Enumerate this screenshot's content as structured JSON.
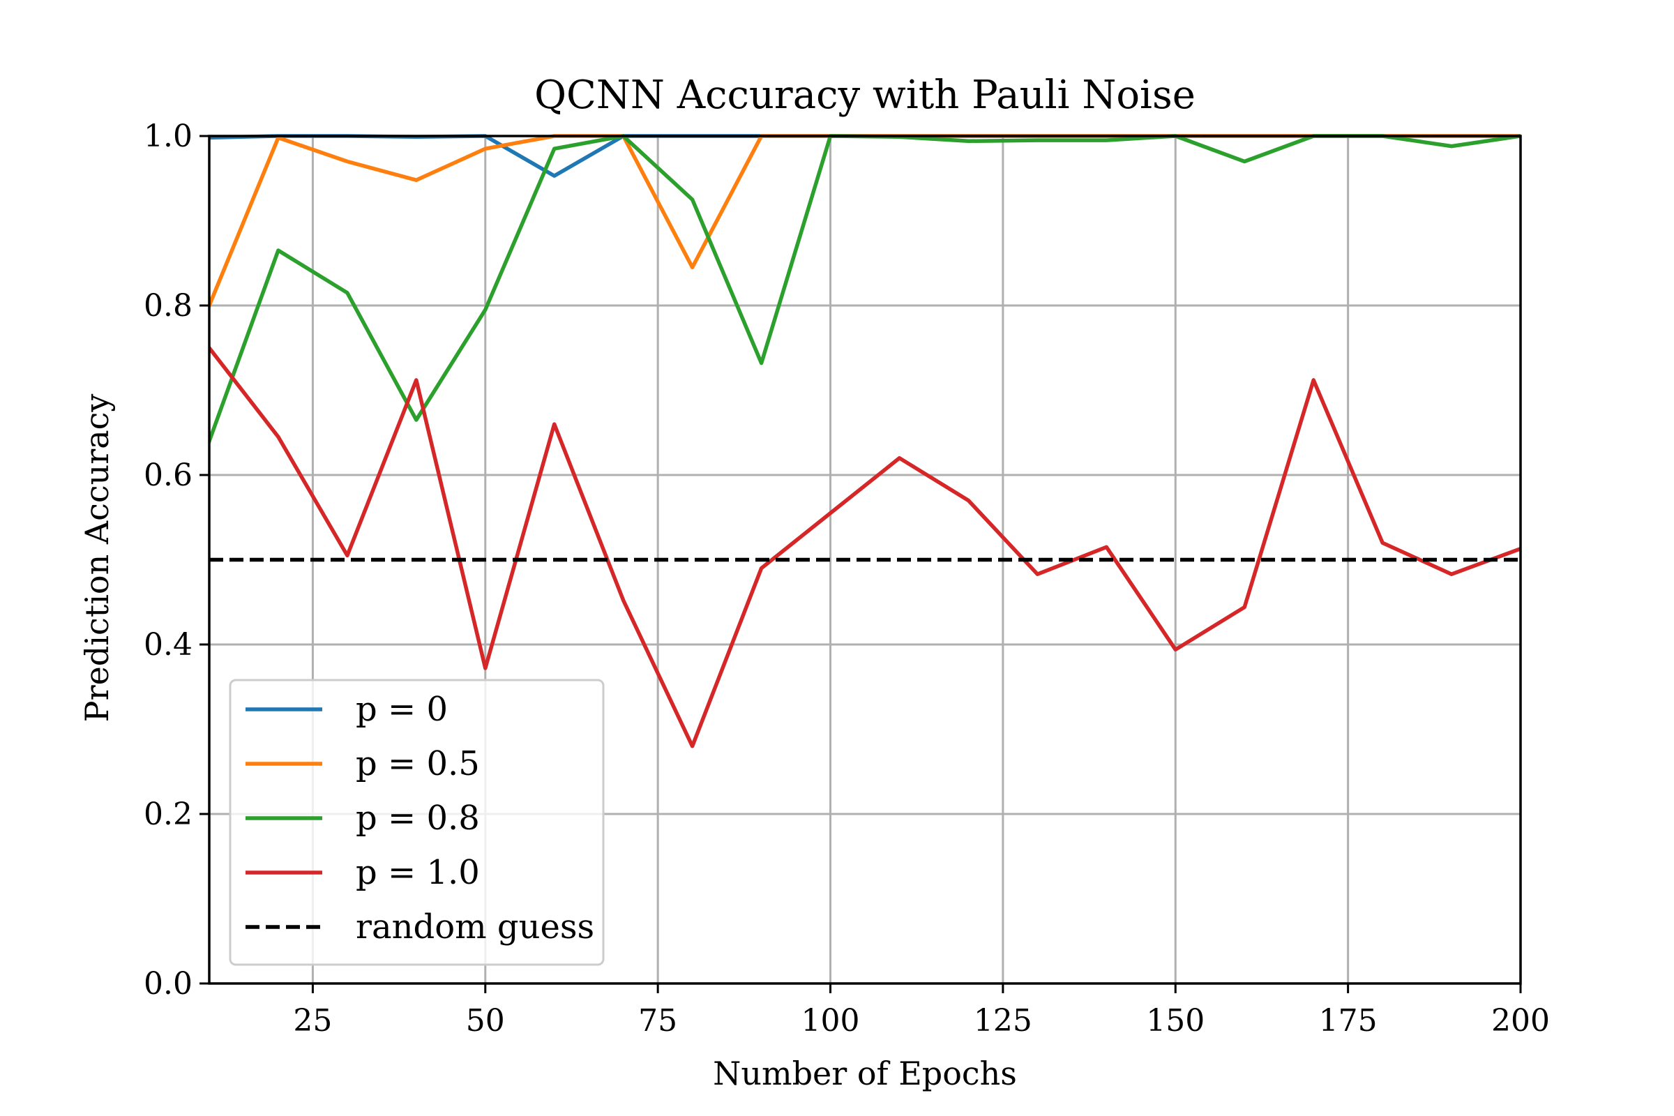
{
  "chart_data": {
    "type": "line",
    "title": "QCNN Accuracy with Pauli Noise",
    "xlabel": "Number of Epochs",
    "ylabel": "Prediction Accuracy",
    "xlim": [
      10,
      200
    ],
    "ylim": [
      0.0,
      1.0
    ],
    "xticks": [
      25,
      50,
      75,
      100,
      125,
      150,
      175,
      200
    ],
    "xtick_labels": [
      "25",
      "50",
      "75",
      "100",
      "125",
      "150",
      "175",
      "200"
    ],
    "yticks": [
      0.0,
      0.2,
      0.4,
      0.6,
      0.8,
      1.0
    ],
    "ytick_labels": [
      "0.0",
      "0.2",
      "0.4",
      "0.6",
      "0.8",
      "1.0"
    ],
    "grid": true,
    "legend_position": "lower-left",
    "x": [
      10,
      20,
      30,
      40,
      50,
      60,
      70,
      80,
      90,
      100,
      110,
      120,
      130,
      140,
      150,
      160,
      170,
      180,
      190,
      200
    ],
    "series": [
      {
        "name": "p = 0",
        "color": "#1f77b4",
        "values": [
          0.998,
          1.0,
          1.0,
          0.999,
          1.0,
          0.953,
          1.0,
          1.0,
          1.0,
          1.0,
          1.0,
          1.0,
          1.0,
          1.0,
          1.0,
          1.0,
          1.0,
          1.0,
          1.0,
          1.0
        ]
      },
      {
        "name": "p = 0.5",
        "color": "#ff7f0e",
        "values": [
          0.8,
          0.998,
          0.97,
          0.948,
          0.985,
          1.0,
          1.0,
          0.845,
          1.0,
          1.0,
          1.0,
          1.0,
          1.0,
          1.0,
          1.0,
          1.0,
          1.0,
          1.0,
          1.0,
          1.0
        ]
      },
      {
        "name": "p = 0.8",
        "color": "#2ca02c",
        "values": [
          0.64,
          0.865,
          0.815,
          0.665,
          0.795,
          0.985,
          1.0,
          0.925,
          0.732,
          1.0,
          0.999,
          0.994,
          0.995,
          0.995,
          1.0,
          0.97,
          1.0,
          1.0,
          0.988,
          1.0
        ]
      },
      {
        "name": "p = 1.0",
        "color": "#d62728",
        "values": [
          0.75,
          0.645,
          0.505,
          0.712,
          0.372,
          0.66,
          0.452,
          0.28,
          0.49,
          0.555,
          0.62,
          0.57,
          0.483,
          0.515,
          0.394,
          0.444,
          0.712,
          0.52,
          0.483,
          0.513
        ]
      }
    ],
    "reference_lines": [
      {
        "name": "random guess",
        "color": "#000000",
        "style": "dashed",
        "y": 0.5
      }
    ]
  }
}
